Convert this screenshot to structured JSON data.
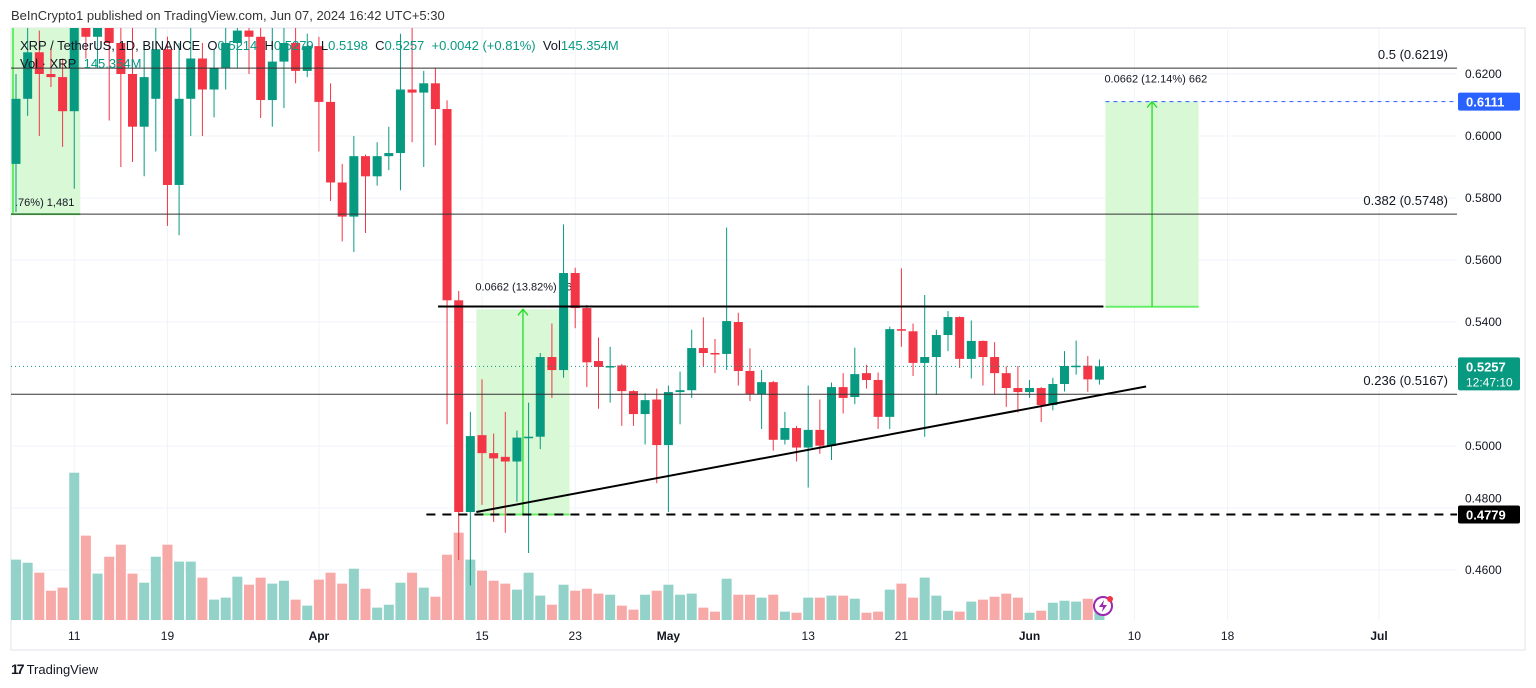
{
  "publisher": "BeInCrypto1 published on TradingView.com, Jun 07, 2024 16:42 UTC+5:30",
  "legend": {
    "symbol": "XRP / TetherUS, 1D, BINANCE",
    "open_label": "O",
    "open": "0.5214",
    "high_label": "H",
    "high": "0.5279",
    "low_label": "L",
    "low": "0.5198",
    "close_label": "C",
    "close": "0.5257",
    "change": "+0.0042 (+0.81%)",
    "vol_label": "Vol",
    "vol": "145.354M",
    "vol_indicator": "Vol · XRP",
    "vol_indicator_value": "145.354M"
  },
  "footer": {
    "logo_mark": "17",
    "logo_text": "TradingView"
  },
  "colors": {
    "up": "#089981",
    "down": "#f23645",
    "vol_up": "#92d2c9",
    "vol_down": "#f7a9a7",
    "target_fill": "#d8f8d6",
    "target_line": "#22dd22",
    "price_badge": "#089981",
    "target_badge": "#2962ff",
    "support_badge": "#000000"
  },
  "chart_data": {
    "type": "candlestick",
    "symbol": "XRP / TetherUS",
    "interval": "1D",
    "exchange": "BINANCE",
    "ylim": [
      0.453,
      0.633
    ],
    "xlim": [
      "2024-03-05",
      "2024-07-11"
    ],
    "grid": true,
    "price_ticks": [
      "0.6200",
      "0.6000",
      "0.5800",
      "0.5600",
      "0.5400",
      "0.5000",
      "0.4800",
      "0.4600"
    ],
    "time_ticks": [
      {
        "date": "2024-03-11",
        "label": "11",
        "major": false
      },
      {
        "date": "2024-03-19",
        "label": "19",
        "major": false
      },
      {
        "date": "2024-04-01",
        "label": "Apr",
        "major": true
      },
      {
        "date": "2024-04-15",
        "label": "15",
        "major": false
      },
      {
        "date": "2024-04-23",
        "label": "23",
        "major": false
      },
      {
        "date": "2024-05-01",
        "label": "May",
        "major": true
      },
      {
        "date": "2024-05-13",
        "label": "13",
        "major": false
      },
      {
        "date": "2024-05-21",
        "label": "21",
        "major": false
      },
      {
        "date": "2024-06-01",
        "label": "Jun",
        "major": true
      },
      {
        "date": "2024-06-10",
        "label": "10",
        "major": false
      },
      {
        "date": "2024-06-18",
        "label": "18",
        "major": false
      },
      {
        "date": "2024-07-01",
        "label": "Jul",
        "major": true
      }
    ],
    "columns": [
      "date",
      "open",
      "high",
      "low",
      "close",
      "volume_m"
    ],
    "candles": [
      [
        "2024-03-06",
        0.591,
        0.62,
        0.5755,
        0.612,
        458
      ],
      [
        "2024-03-07",
        0.612,
        0.635,
        0.6065,
        0.627,
        435
      ],
      [
        "2024-03-08",
        0.627,
        0.634,
        0.6,
        0.62,
        360
      ],
      [
        "2024-03-09",
        0.62,
        0.628,
        0.6158,
        0.619,
        225
      ],
      [
        "2024-03-10",
        0.619,
        0.625,
        0.5965,
        0.608,
        248
      ],
      [
        "2024-03-11",
        0.608,
        0.648,
        0.583,
        0.64,
        1110
      ],
      [
        "2024-03-12",
        0.64,
        0.652,
        0.625,
        0.632,
        638
      ],
      [
        "2024-03-13",
        0.632,
        0.65,
        0.622,
        0.642,
        353
      ],
      [
        "2024-03-14",
        0.642,
        0.65,
        0.605,
        0.63,
        480
      ],
      [
        "2024-03-15",
        0.63,
        0.64,
        0.59,
        0.62,
        570
      ],
      [
        "2024-03-16",
        0.62,
        0.64,
        0.5916,
        0.603,
        353
      ],
      [
        "2024-03-17",
        0.603,
        0.63,
        0.587,
        0.619,
        285
      ],
      [
        "2024-03-18",
        0.612,
        0.635,
        0.595,
        0.628,
        480
      ],
      [
        "2024-03-19",
        0.628,
        0.632,
        0.571,
        0.5842,
        570
      ],
      [
        "2024-03-20",
        0.5842,
        0.63,
        0.568,
        0.612,
        443
      ],
      [
        "2024-03-21",
        0.612,
        0.636,
        0.6,
        0.625,
        443
      ],
      [
        "2024-03-22",
        0.625,
        0.63,
        0.6,
        0.615,
        323
      ],
      [
        "2024-03-23",
        0.615,
        0.628,
        0.606,
        0.622,
        158
      ],
      [
        "2024-03-24",
        0.622,
        0.636,
        0.615,
        0.63,
        173
      ],
      [
        "2024-03-25",
        0.63,
        0.642,
        0.622,
        0.634,
        330
      ],
      [
        "2024-03-26",
        0.634,
        0.64,
        0.62,
        0.632,
        270
      ],
      [
        "2024-03-27",
        0.632,
        0.636,
        0.6058,
        0.6116,
        323
      ],
      [
        "2024-03-28",
        0.6116,
        0.635,
        0.603,
        0.624,
        278
      ],
      [
        "2024-03-29",
        0.624,
        0.64,
        0.609,
        0.63,
        300
      ],
      [
        "2024-03-30",
        0.63,
        0.64,
        0.617,
        0.621,
        158
      ],
      [
        "2024-03-31",
        0.621,
        0.633,
        0.619,
        0.629,
        113
      ],
      [
        "2024-04-01",
        0.629,
        0.632,
        0.595,
        0.611,
        308
      ],
      [
        "2024-04-02",
        0.611,
        0.617,
        0.579,
        0.585,
        360
      ],
      [
        "2024-04-03",
        0.585,
        0.591,
        0.566,
        0.574,
        278
      ],
      [
        "2024-04-04",
        0.574,
        0.6,
        0.5626,
        0.5935,
        390
      ],
      [
        "2024-04-05",
        0.5935,
        0.594,
        0.5687,
        0.587,
        240
      ],
      [
        "2024-04-06",
        0.587,
        0.598,
        0.584,
        0.5935,
        98
      ],
      [
        "2024-04-07",
        0.5935,
        0.603,
        0.589,
        0.5945,
        120
      ],
      [
        "2024-04-08",
        0.5945,
        0.633,
        0.5825,
        0.615,
        285
      ],
      [
        "2024-04-09",
        0.615,
        0.64,
        0.598,
        0.614,
        360
      ],
      [
        "2024-04-10",
        0.614,
        0.621,
        0.59,
        0.617,
        248
      ],
      [
        "2024-04-11",
        0.617,
        0.622,
        0.597,
        0.6087,
        180
      ],
      [
        "2024-04-12",
        0.6087,
        0.6115,
        0.507,
        0.547,
        495
      ],
      [
        "2024-04-13",
        0.547,
        0.55,
        0.4632,
        0.4787,
        660
      ],
      [
        "2024-04-14",
        0.4787,
        0.511,
        0.455,
        0.5032,
        458
      ],
      [
        "2024-04-15",
        0.5035,
        0.5215,
        0.481,
        0.4977,
        375
      ],
      [
        "2024-04-16",
        0.4977,
        0.504,
        0.4755,
        0.496,
        300
      ],
      [
        "2024-04-17",
        0.4965,
        0.511,
        0.472,
        0.495,
        278
      ],
      [
        "2024-04-18",
        0.495,
        0.505,
        0.482,
        0.5027,
        233
      ],
      [
        "2024-04-19",
        0.5025,
        0.514,
        0.4655,
        0.503,
        360
      ],
      [
        "2024-04-20",
        0.503,
        0.53,
        0.499,
        0.5287,
        188
      ],
      [
        "2024-04-21",
        0.5287,
        0.5395,
        0.5155,
        0.5245,
        120
      ],
      [
        "2024-04-22",
        0.5245,
        0.5715,
        0.522,
        0.5558,
        270
      ],
      [
        "2024-04-23",
        0.5558,
        0.5575,
        0.538,
        0.5445,
        225
      ],
      [
        "2024-04-24",
        0.5445,
        0.5455,
        0.519,
        0.527,
        240
      ],
      [
        "2024-04-25",
        0.5274,
        0.535,
        0.512,
        0.5255,
        203
      ],
      [
        "2024-04-26",
        0.5255,
        0.532,
        0.514,
        0.5258,
        195
      ],
      [
        "2024-04-27",
        0.526,
        0.5265,
        0.5065,
        0.5177,
        113
      ],
      [
        "2024-04-28",
        0.5177,
        0.518,
        0.5065,
        0.5103,
        83
      ],
      [
        "2024-04-29",
        0.5103,
        0.517,
        0.5005,
        0.5148,
        195
      ],
      [
        "2024-04-30",
        0.515,
        0.5185,
        0.488,
        0.5003,
        225
      ],
      [
        "2024-05-01",
        0.5003,
        0.5195,
        0.4787,
        0.5174,
        270
      ],
      [
        "2024-05-02",
        0.5174,
        0.524,
        0.507,
        0.518,
        195
      ],
      [
        "2024-05-03",
        0.518,
        0.5375,
        0.5155,
        0.5316,
        203
      ],
      [
        "2024-05-04",
        0.5316,
        0.5415,
        0.5255,
        0.53,
        98
      ],
      [
        "2024-05-05",
        0.53,
        0.5345,
        0.5235,
        0.5297,
        68
      ],
      [
        "2024-05-06",
        0.5297,
        0.5705,
        0.5245,
        0.5403,
        315
      ],
      [
        "2024-05-07",
        0.54,
        0.543,
        0.5195,
        0.5242,
        195
      ],
      [
        "2024-05-08",
        0.5242,
        0.5315,
        0.5145,
        0.5168,
        195
      ],
      [
        "2024-05-09",
        0.5168,
        0.5245,
        0.5055,
        0.5206,
        173
      ],
      [
        "2024-05-10",
        0.5206,
        0.521,
        0.4985,
        0.502,
        195
      ],
      [
        "2024-05-11",
        0.502,
        0.511,
        0.5005,
        0.5058,
        68
      ],
      [
        "2024-05-12",
        0.5058,
        0.5065,
        0.495,
        0.4995,
        60
      ],
      [
        "2024-05-13",
        0.4995,
        0.5195,
        0.4866,
        0.5052,
        173
      ],
      [
        "2024-05-14",
        0.5052,
        0.515,
        0.4975,
        0.5001,
        173
      ],
      [
        "2024-05-15",
        0.5,
        0.5205,
        0.4955,
        0.519,
        188
      ],
      [
        "2024-05-16",
        0.519,
        0.5235,
        0.5105,
        0.5155,
        188
      ],
      [
        "2024-05-17",
        0.5158,
        0.5317,
        0.5135,
        0.5232,
        165
      ],
      [
        "2024-05-18",
        0.5235,
        0.5262,
        0.5185,
        0.5213,
        60
      ],
      [
        "2024-05-19",
        0.5213,
        0.5237,
        0.5055,
        0.5094,
        68
      ],
      [
        "2024-05-20",
        0.5094,
        0.5385,
        0.5055,
        0.5377,
        233
      ],
      [
        "2024-05-21",
        0.5377,
        0.5573,
        0.532,
        0.5372,
        278
      ],
      [
        "2024-05-22",
        0.537,
        0.5395,
        0.5226,
        0.5268,
        173
      ],
      [
        "2024-05-23",
        0.5268,
        0.5487,
        0.503,
        0.5287,
        323
      ],
      [
        "2024-05-24",
        0.5287,
        0.5375,
        0.5165,
        0.5358,
        188
      ],
      [
        "2024-05-25",
        0.5358,
        0.5435,
        0.5306,
        0.5416,
        75
      ],
      [
        "2024-05-26",
        0.5416,
        0.5418,
        0.5252,
        0.5281,
        68
      ],
      [
        "2024-05-27",
        0.5281,
        0.5405,
        0.5218,
        0.5339,
        143
      ],
      [
        "2024-05-28",
        0.5339,
        0.534,
        0.5195,
        0.5287,
        158
      ],
      [
        "2024-05-29",
        0.5287,
        0.5335,
        0.5165,
        0.5235,
        180
      ],
      [
        "2024-05-30",
        0.5235,
        0.5257,
        0.5126,
        0.5187,
        203
      ],
      [
        "2024-05-31",
        0.5187,
        0.5258,
        0.5108,
        0.5174,
        173
      ],
      [
        "2024-06-01",
        0.5174,
        0.5213,
        0.5155,
        0.5187,
        60
      ],
      [
        "2024-06-02",
        0.5187,
        0.519,
        0.5077,
        0.5132,
        75
      ],
      [
        "2024-06-03",
        0.5132,
        0.522,
        0.5115,
        0.52,
        135
      ],
      [
        "2024-06-04",
        0.52,
        0.5306,
        0.5176,
        0.5258,
        150
      ],
      [
        "2024-06-05",
        0.5257,
        0.534,
        0.523,
        0.5259,
        143
      ],
      [
        "2024-06-06",
        0.5259,
        0.529,
        0.5175,
        0.5215,
        165
      ],
      [
        "2024-06-07",
        0.5214,
        0.5279,
        0.5198,
        0.5257,
        145.354
      ]
    ],
    "fib_levels": [
      {
        "level": "0.5",
        "price": 0.6219,
        "label": "0.5 (0.6219)"
      },
      {
        "level": "0.382",
        "price": 0.5748,
        "label": "0.382 (0.5748)"
      },
      {
        "level": "0.236",
        "price": 0.5167,
        "label": "0.236 (0.5167)"
      }
    ],
    "resistance_line": {
      "price": 0.545,
      "from": "2024-04-12",
      "to": "2024-06-07"
    },
    "support_line": {
      "price": 0.4779,
      "from": "2024-04-11",
      "label": "0.4779"
    },
    "trendline": {
      "from": [
        "2024-04-14",
        0.4787
      ],
      "to": [
        "2024-06-11",
        0.5192
      ]
    },
    "measure_boxes": [
      {
        "from": "2024-03-05",
        "to": "2024-03-11",
        "low": 0.5748,
        "high": 0.64,
        "label": ".76%) 1,481"
      },
      {
        "from": "2024-04-14",
        "to": "2024-04-22",
        "low": 0.4779,
        "high": 0.5441,
        "label": "0.0662 (13.82%) 66"
      },
      {
        "from": "2024-06-07",
        "to": "2024-06-15",
        "low": 0.5449,
        "high": 0.6111,
        "label": "0.0662 (12.14%) 662"
      }
    ],
    "target_price": {
      "price": 0.6111,
      "label": "0.6111"
    },
    "last_price": {
      "price": 0.5257,
      "label": "0.5257",
      "countdown": "12:47:10"
    }
  }
}
